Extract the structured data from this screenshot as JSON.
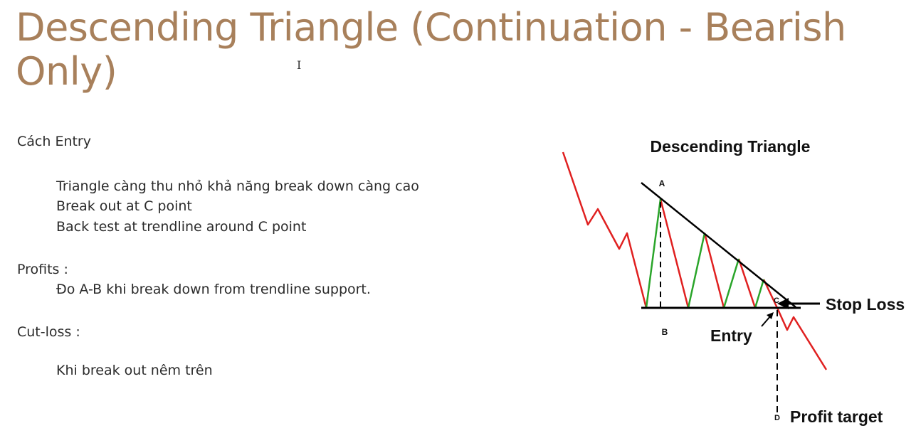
{
  "slide": {
    "title": "Descending Triangle (Continuation - Bearish Only)"
  },
  "notes": {
    "entry_heading": "Cách Entry",
    "entry_items": [
      "Triangle càng thu nhỏ khả năng break down càng cao",
      "Break out at C point",
      "Back test at  trendline around C point"
    ],
    "profits_heading": "Profits :",
    "profits_items": [
      "Đo A-B khi break down from trendline support."
    ],
    "cutloss_heading": "Cut-loss :",
    "cutloss_items": [
      "Khi break out nêm trên"
    ]
  },
  "diagram": {
    "title": "Descending Triangle",
    "point_a": "A",
    "point_b": "B",
    "point_c": "C",
    "point_d": "D",
    "stop_loss": "Stop Loss",
    "entry": "Entry",
    "profit_target": "Profit target",
    "colors": {
      "down_move": "#e02020",
      "up_move": "#2aa52a",
      "lines": "#000000"
    }
  }
}
